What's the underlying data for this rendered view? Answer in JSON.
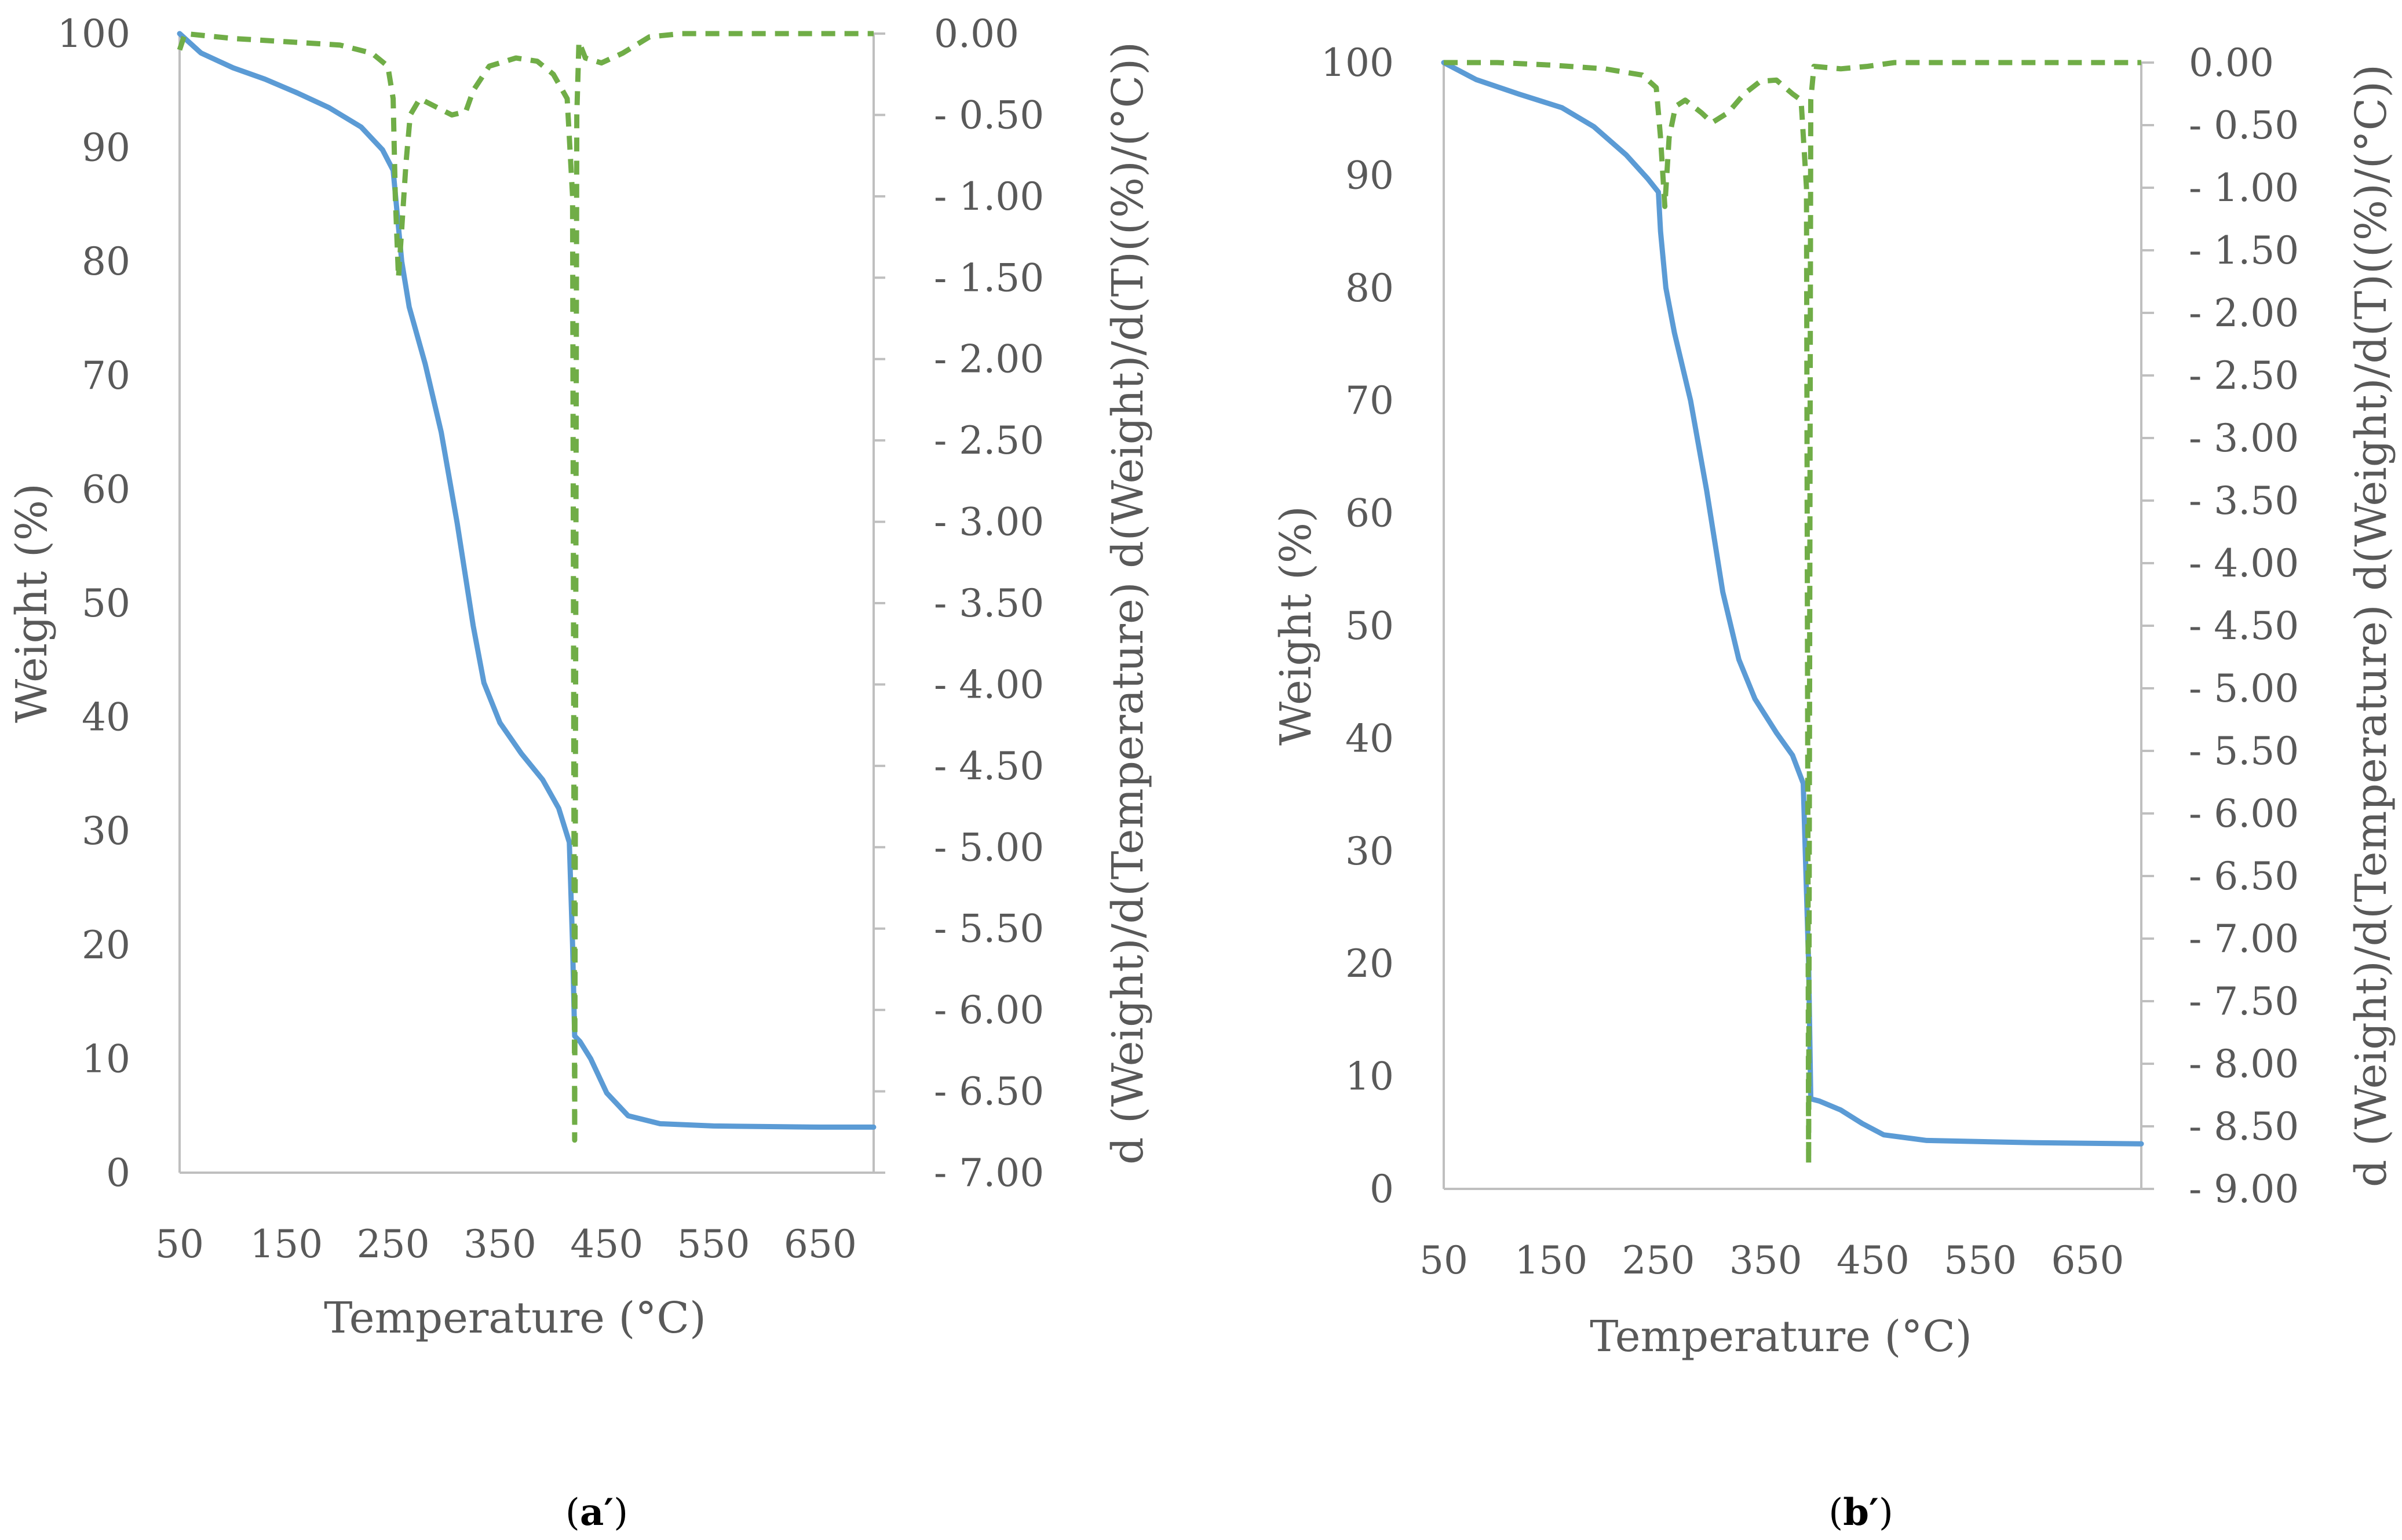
{
  "colors": {
    "weight_line": "#5b9bd5",
    "derivative_line": "#70ad47",
    "axis": "#bfbfbf",
    "text": "#595959"
  },
  "chart_data": [
    {
      "type": "line",
      "panel_label": "a′",
      "xlabel": "Temperature (°C)",
      "ylabel": "Weight (%)",
      "y2label": "d (Weight)/d(Temperature) d(Weight)/d(T)((%)/(°C))",
      "xlim": [
        50,
        700
      ],
      "ylim": [
        0,
        100
      ],
      "y2lim": [
        -7.0,
        0.0
      ],
      "y2_reversed": true,
      "grid": false,
      "legend": "none",
      "x_ticks": [
        50,
        150,
        250,
        350,
        450,
        550,
        650
      ],
      "y_ticks": [
        0,
        10,
        20,
        30,
        40,
        50,
        60,
        70,
        80,
        90,
        100
      ],
      "y2_tick_labels": [
        "0.00",
        "- 0.50",
        "- 1.00",
        "- 1.50",
        "- 2.00",
        "- 2.50",
        "- 3.00",
        "- 3.50",
        "- 4.00",
        "- 4.50",
        "- 5.00",
        "- 5.50",
        "- 6.00",
        "- 6.50",
        "- 7.00"
      ],
      "series": [
        {
          "axis": "left",
          "style": "solid",
          "points": [
            [
              50,
              100
            ],
            [
              70,
              98.3
            ],
            [
              100,
              97
            ],
            [
              130,
              96
            ],
            [
              160,
              94.8
            ],
            [
              190,
              93.5
            ],
            [
              220,
              91.8
            ],
            [
              240,
              89.8
            ],
            [
              250,
              88
            ],
            [
              253,
              85
            ],
            [
              258,
              80
            ],
            [
              265,
              76
            ],
            [
              280,
              71
            ],
            [
              295,
              65
            ],
            [
              310,
              57
            ],
            [
              325,
              48
            ],
            [
              335,
              43
            ],
            [
              350,
              39.5
            ],
            [
              370,
              36.8
            ],
            [
              390,
              34.5
            ],
            [
              405,
              32
            ],
            [
              415,
              29
            ],
            [
              418,
              20
            ],
            [
              420,
              12
            ],
            [
              425,
              11.5
            ],
            [
              435,
              10
            ],
            [
              450,
              7
            ],
            [
              470,
              5
            ],
            [
              500,
              4.3
            ],
            [
              550,
              4.1
            ],
            [
              650,
              4
            ],
            [
              700,
              4
            ]
          ]
        },
        {
          "axis": "right",
          "style": "dashed",
          "points": [
            [
              50,
              -0.1
            ],
            [
              55,
              0
            ],
            [
              100,
              -0.03
            ],
            [
              150,
              -0.05
            ],
            [
              200,
              -0.07
            ],
            [
              230,
              -0.12
            ],
            [
              245,
              -0.2
            ],
            [
              250,
              -0.4
            ],
            [
              252,
              -1.0
            ],
            [
              255,
              -1.5
            ],
            [
              258,
              -1.2
            ],
            [
              262,
              -0.8
            ],
            [
              266,
              -0.5
            ],
            [
              275,
              -0.4
            ],
            [
              290,
              -0.45
            ],
            [
              305,
              -0.5
            ],
            [
              318,
              -0.48
            ],
            [
              325,
              -0.35
            ],
            [
              340,
              -0.2
            ],
            [
              365,
              -0.15
            ],
            [
              385,
              -0.17
            ],
            [
              400,
              -0.25
            ],
            [
              413,
              -0.4
            ],
            [
              418,
              -1.0
            ],
            [
              420,
              -6.8
            ],
            [
              422,
              -0.5
            ],
            [
              424,
              -0.05
            ],
            [
              430,
              -0.15
            ],
            [
              445,
              -0.18
            ],
            [
              465,
              -0.12
            ],
            [
              490,
              -0.02
            ],
            [
              520,
              0
            ],
            [
              700,
              0
            ]
          ]
        }
      ]
    },
    {
      "type": "line",
      "panel_label": "b′",
      "xlabel": "Temperature (°C)",
      "ylabel": "Weight (%)",
      "y2label": "d (Weight)/d(Temperature) d(Weight)/d(T)((%)/(°C))",
      "xlim": [
        50,
        700
      ],
      "ylim": [
        0,
        100
      ],
      "y2lim": [
        -9.0,
        0.0
      ],
      "y2_reversed": true,
      "grid": false,
      "legend": "none",
      "x_ticks": [
        50,
        150,
        250,
        350,
        450,
        550,
        650
      ],
      "y_ticks": [
        0,
        10,
        20,
        30,
        40,
        50,
        60,
        70,
        80,
        90,
        100
      ],
      "y2_tick_labels": [
        "0.00",
        "- 0.50",
        "- 1.00",
        "- 1.50",
        "- 2.00",
        "- 2.50",
        "- 3.00",
        "- 3.50",
        "- 4.00",
        "- 4.50",
        "- 5.00",
        "- 5.50",
        "- 6.00",
        "- 6.50",
        "- 7.00",
        "- 7.50",
        "- 8.00",
        "- 8.50",
        "- 9.00"
      ],
      "series": [
        {
          "axis": "left",
          "style": "solid",
          "points": [
            [
              50,
              100
            ],
            [
              80,
              98.5
            ],
            [
              120,
              97.2
            ],
            [
              160,
              96
            ],
            [
              190,
              94.3
            ],
            [
              220,
              91.8
            ],
            [
              240,
              89.7
            ],
            [
              250,
              88.5
            ],
            [
              252,
              85
            ],
            [
              257,
              80
            ],
            [
              265,
              76
            ],
            [
              280,
              70
            ],
            [
              295,
              62
            ],
            [
              310,
              53
            ],
            [
              325,
              47
            ],
            [
              340,
              43.5
            ],
            [
              360,
              40.5
            ],
            [
              375,
              38.5
            ],
            [
              385,
              36
            ],
            [
              390,
              20
            ],
            [
              392,
              8
            ],
            [
              400,
              7.8
            ],
            [
              420,
              7
            ],
            [
              440,
              5.8
            ],
            [
              460,
              4.8
            ],
            [
              500,
              4.3
            ],
            [
              600,
              4.1
            ],
            [
              700,
              4
            ]
          ]
        },
        {
          "axis": "right",
          "style": "dashed",
          "points": [
            [
              50,
              0
            ],
            [
              100,
              0
            ],
            [
              150,
              -0.02
            ],
            [
              200,
              -0.05
            ],
            [
              235,
              -0.1
            ],
            [
              248,
              -0.2
            ],
            [
              252,
              -0.6
            ],
            [
              256,
              -1.15
            ],
            [
              260,
              -0.6
            ],
            [
              266,
              -0.35
            ],
            [
              275,
              -0.3
            ],
            [
              290,
              -0.4
            ],
            [
              300,
              -0.48
            ],
            [
              315,
              -0.4
            ],
            [
              330,
              -0.25
            ],
            [
              345,
              -0.15
            ],
            [
              360,
              -0.14
            ],
            [
              375,
              -0.25
            ],
            [
              383,
              -0.3
            ],
            [
              388,
              -1.0
            ],
            [
              390,
              -8.8
            ],
            [
              392,
              -0.3
            ],
            [
              395,
              -0.03
            ],
            [
              420,
              -0.05
            ],
            [
              445,
              -0.03
            ],
            [
              470,
              0
            ],
            [
              700,
              0
            ]
          ]
        }
      ]
    }
  ]
}
